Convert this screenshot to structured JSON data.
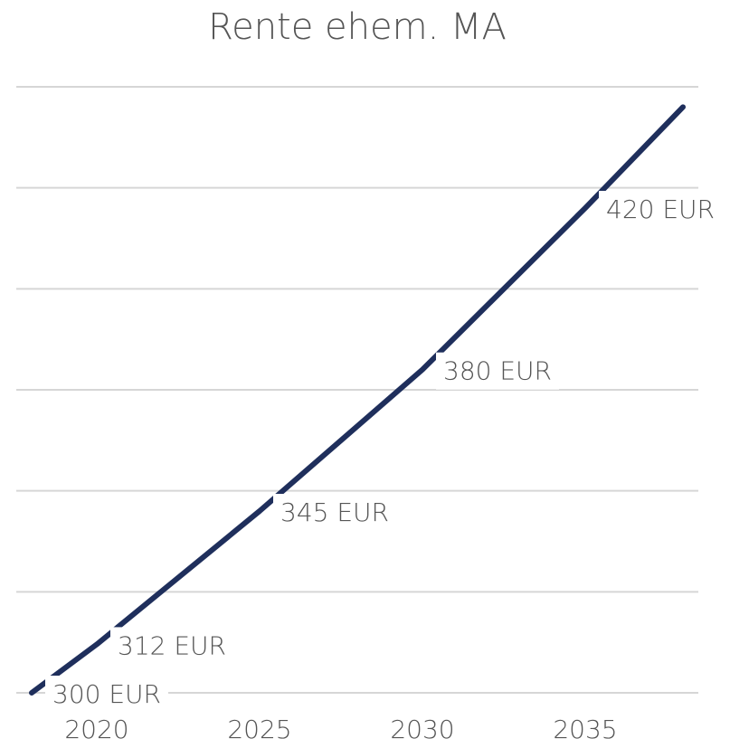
{
  "chart_data": {
    "type": "line",
    "title": "Rente ehem. MA",
    "x": [
      2018,
      2020,
      2025,
      2030,
      2035,
      2038
    ],
    "series": [
      {
        "name": null,
        "color": "#1f2f5c",
        "values": [
          300,
          312,
          345,
          380,
          420,
          445
        ],
        "value_labels": [
          "300 EUR",
          "312 EUR",
          "345 EUR",
          "380 EUR",
          "420 EUR",
          null
        ]
      }
    ],
    "xlim": [
      2018,
      2038
    ],
    "xticks": [
      2020,
      2025,
      2030,
      2035
    ],
    "ylim": [
      300,
      450
    ],
    "yticks": [
      300,
      325,
      350,
      375,
      400,
      425,
      450
    ],
    "grid": true
  }
}
